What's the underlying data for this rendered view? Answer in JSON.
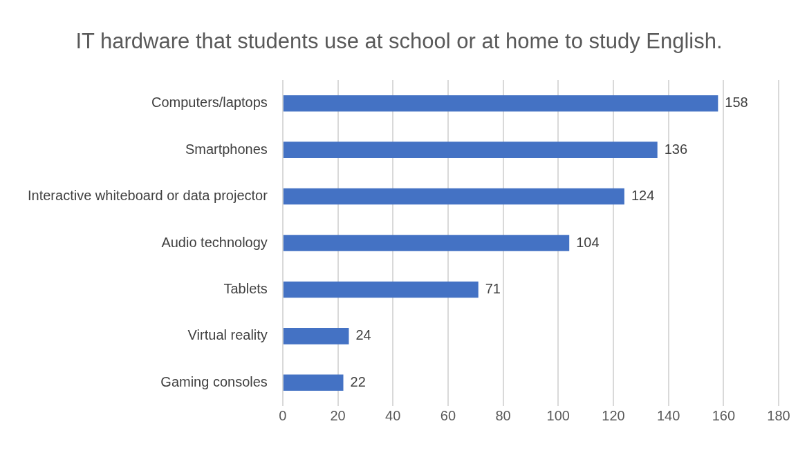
{
  "chart_data": {
    "type": "bar",
    "orientation": "horizontal",
    "title": "IT hardware that students use at school or at home to study English.",
    "categories": [
      "Computers/laptops",
      "Smartphones",
      "Interactive whiteboard or data projector",
      "Audio technology",
      "Tablets",
      "Virtual reality",
      "Gaming consoles"
    ],
    "values": [
      158,
      136,
      124,
      104,
      71,
      24,
      22
    ],
    "color": "#4472c4",
    "xlim": [
      0,
      180
    ],
    "xticks": [
      0,
      20,
      40,
      60,
      80,
      100,
      120,
      140,
      160,
      180
    ],
    "grid": "x",
    "data_labels": true,
    "legend": false
  }
}
